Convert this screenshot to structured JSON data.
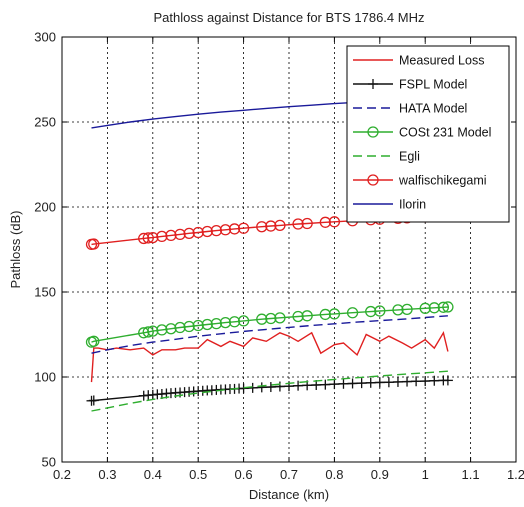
{
  "chart_data": {
    "type": "line",
    "title": "Pathloss against Distance for BTS 1786.4 MHz",
    "xlabel": "Distance (km)",
    "ylabel": "Pathloss (dB)",
    "xlim": [
      0.2,
      1.2
    ],
    "ylim": [
      50,
      300
    ],
    "xticks": [
      0.2,
      0.3,
      0.4,
      0.5,
      0.6,
      0.7,
      0.8,
      0.9,
      1.0,
      1.1,
      1.2
    ],
    "xtick_labels": [
      "0.2",
      "0.3",
      "0.4",
      "0.5",
      "0.6",
      "0.7",
      "0.8",
      "0.9",
      "1",
      "1.1",
      "1.2"
    ],
    "yticks": [
      50,
      100,
      150,
      200,
      250,
      300
    ],
    "ytick_labels": [
      "50",
      "100",
      "150",
      "200",
      "250",
      "300"
    ],
    "grid": true,
    "legend_position": "top-right",
    "series": [
      {
        "name": "Measured Loss",
        "color": "#e02020",
        "dash": "solid",
        "marker": "none",
        "x": [
          0.265,
          0.27,
          0.28,
          0.3,
          0.32,
          0.35,
          0.38,
          0.4,
          0.42,
          0.45,
          0.47,
          0.5,
          0.52,
          0.55,
          0.57,
          0.6,
          0.62,
          0.65,
          0.68,
          0.7,
          0.72,
          0.75,
          0.77,
          0.8,
          0.82,
          0.85,
          0.87,
          0.9,
          0.92,
          0.95,
          0.97,
          1.0,
          1.02,
          1.04,
          1.05
        ],
        "y": [
          97,
          117,
          117,
          116,
          117,
          116,
          117,
          113,
          116,
          116,
          117,
          117,
          122,
          118,
          121,
          118,
          123,
          121,
          126,
          124,
          121,
          126,
          114,
          119,
          120,
          113,
          125,
          121,
          124,
          120,
          117,
          122,
          117,
          126,
          115
        ]
      },
      {
        "name": "FSPL Model",
        "color": "#111111",
        "dash": "solid",
        "marker": "plus",
        "x": [
          0.265,
          0.27,
          0.38,
          0.39,
          0.4,
          0.41,
          0.42,
          0.43,
          0.44,
          0.45,
          0.46,
          0.47,
          0.48,
          0.49,
          0.5,
          0.51,
          0.52,
          0.53,
          0.54,
          0.55,
          0.56,
          0.57,
          0.58,
          0.59,
          0.6,
          0.62,
          0.64,
          0.66,
          0.68,
          0.7,
          0.72,
          0.74,
          0.76,
          0.78,
          0.8,
          0.82,
          0.84,
          0.86,
          0.88,
          0.9,
          0.92,
          0.94,
          0.96,
          0.98,
          1.0,
          1.02,
          1.04,
          1.05
        ],
        "y": [
          86,
          86.2,
          89,
          89.3,
          89.5,
          89.8,
          90,
          90.3,
          90.5,
          90.7,
          90.9,
          91.1,
          91.3,
          91.5,
          91.7,
          91.9,
          92.1,
          92.2,
          92.4,
          92.6,
          92.7,
          92.9,
          93,
          93.2,
          93.3,
          93.6,
          93.9,
          94.1,
          94.4,
          94.6,
          94.9,
          95.1,
          95.3,
          95.5,
          95.8,
          96,
          96.2,
          96.4,
          96.6,
          96.8,
          96.9,
          97.1,
          97.3,
          97.5,
          97.6,
          97.8,
          98,
          98
        ]
      },
      {
        "name": "HATA Model",
        "color": "#1a1a9a",
        "dash": "dashed",
        "marker": "none",
        "x": [
          0.265,
          0.3,
          0.35,
          0.4,
          0.45,
          0.5,
          0.55,
          0.6,
          0.65,
          0.7,
          0.75,
          0.8,
          0.85,
          0.9,
          0.95,
          1.0,
          1.05
        ],
        "y": [
          114,
          116,
          118.5,
          120.5,
          122.2,
          124,
          125.4,
          126.8,
          128,
          129.2,
          130.3,
          131.3,
          132.3,
          133.2,
          134,
          135,
          136
        ]
      },
      {
        "name": "COSt 231 Model",
        "color": "#2fae2f",
        "dash": "solid",
        "marker": "circle",
        "x": [
          0.265,
          0.27,
          0.38,
          0.39,
          0.4,
          0.42,
          0.44,
          0.46,
          0.48,
          0.5,
          0.52,
          0.54,
          0.56,
          0.58,
          0.6,
          0.64,
          0.66,
          0.68,
          0.72,
          0.74,
          0.78,
          0.8,
          0.84,
          0.88,
          0.9,
          0.94,
          0.96,
          1.0,
          1.02,
          1.04,
          1.05
        ],
        "y": [
          120.5,
          121,
          126,
          126.5,
          127,
          127.7,
          128.4,
          129.1,
          129.7,
          130.3,
          130.9,
          131.4,
          132,
          132.5,
          133,
          134,
          134.4,
          134.8,
          135.6,
          136,
          136.8,
          137.1,
          137.8,
          138.5,
          138.8,
          139.5,
          139.8,
          140.4,
          140.7,
          141,
          141.2
        ]
      },
      {
        "name": "Egli",
        "color": "#2fae2f",
        "dash": "dashed",
        "marker": "none",
        "x": [
          0.265,
          0.3,
          0.35,
          0.4,
          0.45,
          0.5,
          0.55,
          0.6,
          0.65,
          0.7,
          0.75,
          0.8,
          0.85,
          0.9,
          0.95,
          1.0,
          1.05
        ],
        "y": [
          80,
          81.8,
          84.5,
          86.8,
          88.8,
          90.6,
          92.2,
          93.7,
          95,
          96.3,
          97.5,
          98.6,
          99.6,
          100.6,
          101.6,
          102.5,
          103.4
        ]
      },
      {
        "name": "walfischikegami",
        "color": "#e02020",
        "dash": "solid",
        "marker": "circle",
        "x": [
          0.265,
          0.27,
          0.38,
          0.39,
          0.4,
          0.42,
          0.44,
          0.46,
          0.48,
          0.5,
          0.52,
          0.54,
          0.56,
          0.58,
          0.6,
          0.64,
          0.66,
          0.68,
          0.72,
          0.74,
          0.78,
          0.8,
          0.84,
          0.88,
          0.9,
          0.94,
          0.96,
          1.0,
          1.02,
          1.04,
          1.05
        ],
        "y": [
          178,
          178.2,
          181.5,
          181.8,
          182,
          182.7,
          183.3,
          183.9,
          184.5,
          185,
          185.6,
          186.1,
          186.6,
          187.1,
          187.5,
          188.4,
          188.8,
          189.2,
          190,
          190.3,
          191,
          191.3,
          191.9,
          192.5,
          192.8,
          193.3,
          193.6,
          194.1,
          194.3,
          194.6,
          194.7
        ]
      },
      {
        "name": "Ilorin",
        "color": "#1a1a9a",
        "dash": "solid",
        "marker": "none",
        "x": [
          0.265,
          0.3,
          0.35,
          0.4,
          0.45,
          0.5,
          0.55,
          0.6,
          0.65,
          0.7,
          0.75,
          0.8,
          0.85,
          0.9,
          0.95,
          1.0,
          1.05
        ],
        "y": [
          246.5,
          248,
          250,
          251.7,
          253.2,
          254.6,
          255.8,
          256.9,
          258,
          259,
          259.9,
          260.8,
          261.6,
          262.4,
          263.1,
          263.8,
          264.5
        ]
      }
    ]
  }
}
